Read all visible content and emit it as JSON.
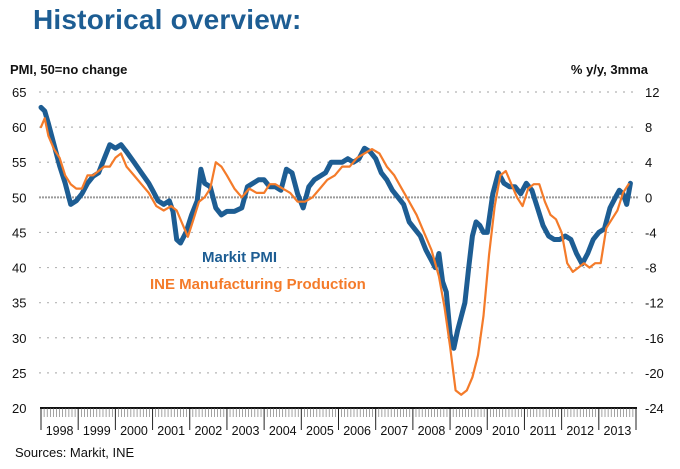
{
  "title": "Historical overview:",
  "left_axis_label": "PMI, 50=no change",
  "right_axis_label": "% y/y, 3mma",
  "source": "Sources: Markit, INE",
  "chart_data": {
    "type": "line",
    "title": "Historical overview:",
    "xlabel": "",
    "ylabel_left": "PMI, 50=no change",
    "ylabel_right": "% y/y, 3mma",
    "x_categories": [
      "1998",
      "1999",
      "2000",
      "2001",
      "2002",
      "2003",
      "2004",
      "2005",
      "2006",
      "2007",
      "2008",
      "2009",
      "2010",
      "2011",
      "2012",
      "2013"
    ],
    "x_range": [
      1998.0,
      2014.0
    ],
    "ylim_left": [
      20,
      65
    ],
    "yticks_left": [
      "65",
      "60",
      "55",
      "50",
      "45",
      "40",
      "35",
      "30",
      "25",
      "20"
    ],
    "ylim_right": [
      -24,
      12
    ],
    "yticks_right": [
      "12",
      "8",
      "4",
      "0",
      "-4",
      "-8",
      "-12",
      "-16",
      "-20",
      "-24"
    ],
    "reference_line_left": 50,
    "grid": true,
    "legend": [
      {
        "name": "Markit PMI",
        "color": "#1d5d93",
        "axis": "left",
        "placement": "center-left"
      },
      {
        "name": "INE Manufacturing Production",
        "color": "#f47b2a",
        "axis": "right",
        "placement": "center-left"
      }
    ],
    "series": [
      {
        "name": "Markit PMI",
        "axis": "left",
        "color": "#1d5d93",
        "x": [
          1998.0,
          1998.1,
          1998.2,
          1998.35,
          1998.5,
          1998.65,
          1998.8,
          1998.95,
          1999.1,
          1999.25,
          1999.4,
          1999.55,
          1999.7,
          1999.85,
          2000.0,
          2000.15,
          2000.3,
          2000.5,
          2000.7,
          2000.9,
          2001.0,
          2001.15,
          2001.3,
          2001.45,
          2001.55,
          2001.65,
          2001.75,
          2001.9,
          2002.05,
          2002.2,
          2002.3,
          2002.4,
          2002.55,
          2002.7,
          2002.85,
          2003.0,
          2003.2,
          2003.4,
          2003.55,
          2003.7,
          2003.85,
          2004.0,
          2004.15,
          2004.3,
          2004.45,
          2004.6,
          2004.75,
          2004.9,
          2005.05,
          2005.2,
          2005.35,
          2005.5,
          2005.65,
          2005.8,
          2005.95,
          2006.1,
          2006.25,
          2006.4,
          2006.55,
          2006.7,
          2006.85,
          2007.0,
          2007.15,
          2007.3,
          2007.45,
          2007.6,
          2007.75,
          2007.9,
          2008.05,
          2008.2,
          2008.35,
          2008.5,
          2008.6,
          2008.7,
          2008.8,
          2008.9,
          2009.0,
          2009.1,
          2009.2,
          2009.3,
          2009.4,
          2009.5,
          2009.6,
          2009.7,
          2009.8,
          2009.9,
          2010.0,
          2010.15,
          2010.3,
          2010.45,
          2010.6,
          2010.75,
          2010.9,
          2011.05,
          2011.2,
          2011.35,
          2011.5,
          2011.65,
          2011.8,
          2011.95,
          2012.1,
          2012.25,
          2012.4,
          2012.55,
          2012.7,
          2012.85,
          2013.0,
          2013.15,
          2013.3,
          2013.45,
          2013.55,
          2013.65,
          2013.75,
          2013.85
        ],
        "values": [
          62.8,
          62.3,
          60.5,
          57.5,
          54.5,
          52.0,
          49.0,
          49.5,
          50.5,
          52.0,
          53.0,
          53.5,
          55.5,
          57.5,
          57.0,
          57.5,
          56.5,
          55.0,
          53.5,
          52.0,
          51.0,
          49.5,
          49.0,
          49.5,
          48.0,
          44.0,
          43.5,
          45.0,
          47.5,
          49.5,
          54.0,
          52.0,
          51.5,
          48.5,
          47.5,
          48.0,
          48.0,
          48.5,
          51.5,
          52.0,
          52.5,
          52.5,
          51.5,
          51.5,
          51.0,
          54.0,
          53.5,
          50.5,
          48.5,
          51.5,
          52.5,
          53.0,
          53.5,
          55.0,
          55.0,
          55.0,
          55.5,
          55.0,
          55.5,
          57.0,
          56.5,
          55.5,
          53.5,
          52.5,
          51.0,
          50.0,
          49.0,
          46.5,
          45.5,
          44.5,
          42.5,
          41.0,
          40.0,
          42.0,
          38.0,
          36.5,
          30.5,
          28.5,
          31.0,
          33.0,
          35.0,
          40.0,
          44.5,
          46.5,
          46.0,
          45.0,
          45.0,
          50.5,
          53.5,
          52.0,
          51.5,
          51.5,
          50.5,
          52.0,
          51.0,
          48.5,
          46.0,
          44.5,
          44.0,
          44.0,
          44.5,
          44.0,
          42.0,
          40.5,
          42.0,
          44.0,
          45.0,
          45.5,
          48.5,
          50.0,
          51.0,
          50.5,
          49.0,
          52.0
        ]
      },
      {
        "name": "INE Manufacturing Production",
        "axis": "right",
        "color": "#f47b2a",
        "x": [
          1998.0,
          1998.1,
          1998.2,
          1998.35,
          1998.5,
          1998.65,
          1998.8,
          1998.95,
          1999.1,
          1999.25,
          1999.4,
          1999.55,
          1999.7,
          1999.85,
          2000.0,
          2000.15,
          2000.3,
          2000.5,
          2000.7,
          2000.9,
          2001.1,
          2001.3,
          2001.5,
          2001.65,
          2001.8,
          2001.95,
          2002.1,
          2002.25,
          2002.4,
          2002.55,
          2002.7,
          2002.85,
          2003.0,
          2003.2,
          2003.4,
          2003.6,
          2003.8,
          2004.0,
          2004.15,
          2004.3,
          2004.5,
          2004.7,
          2004.9,
          2005.1,
          2005.3,
          2005.5,
          2005.7,
          2005.9,
          2006.1,
          2006.3,
          2006.5,
          2006.7,
          2006.9,
          2007.1,
          2007.3,
          2007.5,
          2007.7,
          2007.9,
          2008.1,
          2008.3,
          2008.5,
          2008.7,
          2008.85,
          2009.0,
          2009.15,
          2009.3,
          2009.45,
          2009.6,
          2009.75,
          2009.9,
          2010.05,
          2010.2,
          2010.35,
          2010.5,
          2010.65,
          2010.8,
          2010.95,
          2011.1,
          2011.25,
          2011.4,
          2011.55,
          2011.7,
          2011.85,
          2012.0,
          2012.15,
          2012.3,
          2012.45,
          2012.6,
          2012.75,
          2012.9,
          2013.05,
          2013.2,
          2013.35,
          2013.5,
          2013.65,
          2013.8
        ],
        "values": [
          8.0,
          9.0,
          7.0,
          5.5,
          4.5,
          2.5,
          1.5,
          1.0,
          1.0,
          2.5,
          2.5,
          3.0,
          3.5,
          3.5,
          4.5,
          5.0,
          3.5,
          2.5,
          1.5,
          0.5,
          -1.0,
          -1.5,
          -1.0,
          -1.5,
          -3.0,
          -4.5,
          -2.5,
          -0.5,
          0.0,
          1.0,
          4.0,
          3.5,
          2.5,
          1.0,
          0.0,
          1.0,
          0.5,
          0.5,
          1.5,
          1.5,
          1.0,
          0.5,
          -0.5,
          -0.5,
          0.0,
          1.0,
          2.0,
          2.5,
          3.5,
          3.5,
          4.5,
          5.0,
          5.5,
          5.0,
          3.5,
          2.5,
          1.0,
          -0.5,
          -2.0,
          -4.0,
          -6.0,
          -9.0,
          -12.5,
          -17.0,
          -22.0,
          -22.5,
          -22.0,
          -20.5,
          -18.0,
          -13.5,
          -6.5,
          -1.0,
          2.5,
          3.0,
          1.5,
          0.0,
          -1.0,
          1.0,
          1.5,
          1.5,
          -0.5,
          -2.0,
          -2.5,
          -4.0,
          -7.5,
          -8.5,
          -8.0,
          -7.5,
          -8.0,
          -7.5,
          -7.5,
          -3.5,
          -2.5,
          -1.5,
          0.5,
          1.5
        ]
      }
    ]
  }
}
